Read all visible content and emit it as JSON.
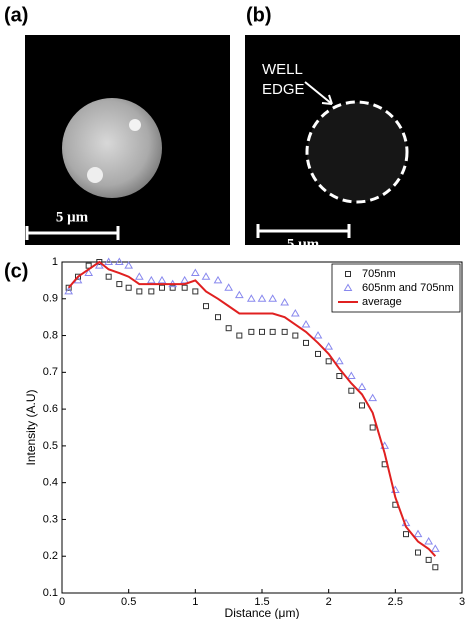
{
  "panels": {
    "a": {
      "label": "(a)",
      "scale_bar": "5 μm"
    },
    "b": {
      "label": "(b)",
      "scale_bar": "5 μm",
      "annotation": [
        "WELL",
        "EDGE"
      ]
    },
    "c": {
      "label": "(c)"
    }
  },
  "chart_data": {
    "type": "scatter",
    "x_label": "Distance (μm)",
    "y_label": "Intensity (A.U)",
    "x": [
      0.05,
      0.12,
      0.2,
      0.28,
      0.35,
      0.43,
      0.5,
      0.58,
      0.67,
      0.75,
      0.83,
      0.92,
      1.0,
      1.08,
      1.17,
      1.25,
      1.33,
      1.42,
      1.5,
      1.58,
      1.67,
      1.75,
      1.83,
      1.92,
      2.0,
      2.08,
      2.17,
      2.25,
      2.33,
      2.42,
      2.5,
      2.58,
      2.67,
      2.75,
      2.8
    ],
    "series": [
      {
        "name": "705nm",
        "color": "#333333",
        "marker": "square",
        "values": [
          0.93,
          0.96,
          0.99,
          1.0,
          0.96,
          0.94,
          0.93,
          0.92,
          0.92,
          0.93,
          0.93,
          0.93,
          0.92,
          0.88,
          0.85,
          0.82,
          0.8,
          0.81,
          0.81,
          0.81,
          0.81,
          0.8,
          0.78,
          0.75,
          0.73,
          0.69,
          0.65,
          0.61,
          0.55,
          0.45,
          0.34,
          0.26,
          0.21,
          0.19,
          0.17
        ]
      },
      {
        "name": "605nm and 705nm",
        "color": "#8888ee",
        "marker": "triangle",
        "values": [
          0.92,
          0.95,
          0.97,
          0.99,
          1.0,
          1.0,
          0.99,
          0.96,
          0.95,
          0.95,
          0.94,
          0.95,
          0.97,
          0.96,
          0.95,
          0.93,
          0.91,
          0.9,
          0.9,
          0.9,
          0.89,
          0.86,
          0.83,
          0.8,
          0.77,
          0.73,
          0.69,
          0.66,
          0.63,
          0.5,
          0.38,
          0.29,
          0.26,
          0.24,
          0.22
        ]
      },
      {
        "name": "average",
        "color": "#e02020",
        "marker": "line",
        "values": [
          0.93,
          0.96,
          0.98,
          1.0,
          0.98,
          0.97,
          0.96,
          0.94,
          0.94,
          0.94,
          0.94,
          0.94,
          0.95,
          0.92,
          0.9,
          0.88,
          0.86,
          0.86,
          0.86,
          0.86,
          0.85,
          0.83,
          0.81,
          0.78,
          0.75,
          0.71,
          0.67,
          0.64,
          0.59,
          0.48,
          0.36,
          0.28,
          0.24,
          0.22,
          0.2
        ]
      }
    ],
    "xlim": [
      0,
      3
    ],
    "ylim": [
      0.1,
      1
    ],
    "xticks": [
      0,
      0.5,
      1,
      1.5,
      2,
      2.5,
      3
    ],
    "yticks": [
      0.1,
      0.2,
      0.3,
      0.4,
      0.5,
      0.6,
      0.7,
      0.8,
      0.9,
      1
    ],
    "legend": "top-right"
  }
}
